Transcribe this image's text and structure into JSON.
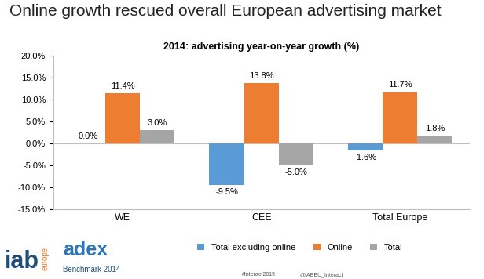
{
  "chart_data": {
    "type": "bar",
    "title": "Online growth rescued overall European advertising market",
    "subtitle": "2014: advertising year-on-year growth (%)",
    "categories": [
      "WE",
      "CEE",
      "Total Europe"
    ],
    "series": [
      {
        "name": "Total excluding online",
        "color": "#5B9BD5",
        "values": [
          0.0,
          -9.5,
          -1.6
        ],
        "value_labels": [
          "0.0%",
          "-9.5%",
          "-1.6%"
        ]
      },
      {
        "name": "Online",
        "color": "#ED7D31",
        "values": [
          11.4,
          13.8,
          11.7
        ],
        "value_labels": [
          "11.4%",
          "13.8%",
          "11.7%"
        ]
      },
      {
        "name": "Total",
        "color": "#A5A5A5",
        "values": [
          3.0,
          -5.0,
          1.8
        ],
        "value_labels": [
          "3.0%",
          "-5.0%",
          "1.8%"
        ]
      }
    ],
    "ylim": [
      -15,
      20
    ],
    "yticks": [
      {
        "value": -15,
        "label": "-15.0%"
      },
      {
        "value": -10,
        "label": "-10.0%"
      },
      {
        "value": -5,
        "label": "-5.0%"
      },
      {
        "value": 0,
        "label": "0.0%"
      },
      {
        "value": 5,
        "label": "5.0%"
      },
      {
        "value": 10,
        "label": "10.0%"
      },
      {
        "value": 15,
        "label": "15.0%"
      },
      {
        "value": 20,
        "label": "20.0%"
      }
    ],
    "grid": false,
    "legend": "lower center",
    "data_labels": true,
    "annotations": [
      "iab",
      "europe",
      "adex",
      "Benchmark 2014",
      "#Interact2015",
      "@IABEU_Interact"
    ]
  }
}
